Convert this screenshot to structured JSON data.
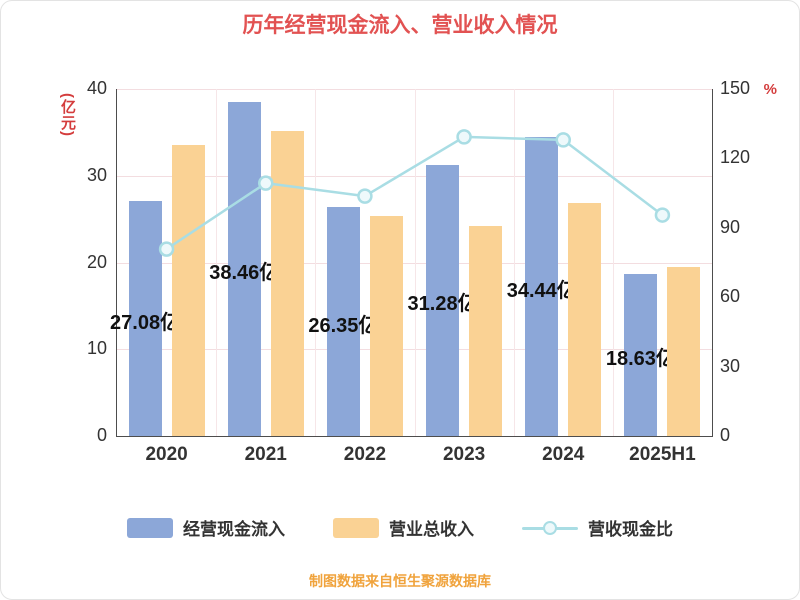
{
  "chart_data": {
    "type": "bar+line",
    "title": "历年经营现金流入、营业收入情况",
    "categories": [
      "2020",
      "2021",
      "2022",
      "2023",
      "2024",
      "2025H1"
    ],
    "series": [
      {
        "name": "经营现金流入",
        "type": "bar",
        "axis": "left",
        "color": "#8ca7d8",
        "values": [
          27.08,
          38.46,
          26.35,
          31.28,
          34.44,
          18.63
        ],
        "labels": [
          "27.08亿",
          "38.46亿",
          "26.35亿",
          "31.28亿",
          "34.44亿",
          "18.63亿"
        ]
      },
      {
        "name": "营业总收入",
        "type": "bar",
        "axis": "left",
        "color": "#fad294",
        "values": [
          33.5,
          35.2,
          25.4,
          24.2,
          26.9,
          19.5
        ]
      },
      {
        "name": "营收现金比",
        "type": "line",
        "axis": "right",
        "color": "#a9dde4",
        "values": [
          80.8,
          109.3,
          103.7,
          129.3,
          128.0,
          95.5
        ]
      }
    ],
    "left_axis": {
      "label": "(亿元)",
      "min": 0,
      "max": 40,
      "ticks": [
        0,
        10,
        20,
        30,
        40
      ]
    },
    "right_axis": {
      "label": "%",
      "min": 0,
      "max": 150,
      "ticks": [
        0,
        30,
        60,
        90,
        120,
        150
      ]
    },
    "grid": true,
    "legend_position": "bottom",
    "footer": "制图数据来自恒生聚源数据库"
  },
  "style": {
    "title_color": "#e25252",
    "axis_unit_color": "#d43d3d",
    "footer_color": "#f0a33c",
    "bar_label_color": "#111111",
    "tick_color": "#333333",
    "marker_fill": "#eef9fb"
  }
}
